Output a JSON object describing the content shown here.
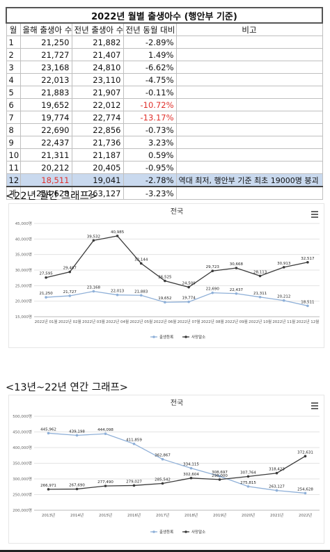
{
  "table": {
    "title": "2022년 월별 출생아수 (행안부 기준)",
    "headers": [
      "월",
      "올해 출생아 수",
      "전년 출생아 수",
      "전년 동월 대비",
      "비고"
    ],
    "rows": [
      {
        "month": "1",
        "current": "21,250",
        "previous": "21,882",
        "change": "-2.89%",
        "note": ""
      },
      {
        "month": "2",
        "current": "21,727",
        "previous": "21,407",
        "change": "1.49%",
        "note": ""
      },
      {
        "month": "3",
        "current": "23,168",
        "previous": "24,810",
        "change": "-6.62%",
        "note": ""
      },
      {
        "month": "4",
        "current": "22,013",
        "previous": "23,110",
        "change": "-4.75%",
        "note": ""
      },
      {
        "month": "5",
        "current": "21,883",
        "previous": "21,907",
        "change": "-0.11%",
        "note": ""
      },
      {
        "month": "6",
        "current": "19,652",
        "previous": "22,012",
        "change": "-10.72%",
        "note": "",
        "change_red": true
      },
      {
        "month": "7",
        "current": "19,774",
        "previous": "22,774",
        "change": "-13.17%",
        "note": "",
        "change_red": true
      },
      {
        "month": "8",
        "current": "22,690",
        "previous": "22,856",
        "change": "-0.73%",
        "note": ""
      },
      {
        "month": "9",
        "current": "22,437",
        "previous": "21,736",
        "change": "3.23%",
        "note": ""
      },
      {
        "month": "10",
        "current": "21,311",
        "previous": "21,187",
        "change": "0.59%",
        "note": ""
      },
      {
        "month": "11",
        "current": "20,212",
        "previous": "20,405",
        "change": "-0.95%",
        "note": ""
      },
      {
        "month": "12",
        "current": "18,511",
        "previous": "19,041",
        "change": "-2.78%",
        "note": "역대 최저, 행안부 기준 최초 19000명 붕괴",
        "highlight": true
      }
    ],
    "total": {
      "month": "계",
      "current": "254,628",
      "previous": "263,127",
      "change": "-3.23%",
      "note": ""
    }
  },
  "section1": {
    "label": "<22년 월간 그래프>"
  },
  "section2": {
    "label": "<13년~22년 연간 그래프>"
  },
  "colors": {
    "series1": "#8fb0d8",
    "series2": "#3a3a3a",
    "grid": "#e3e3e3",
    "negative": "#e0302b",
    "highlight": "#c9d9ee"
  },
  "chart_data": [
    {
      "type": "line",
      "title": "전국",
      "categories": [
        "2022년 01월",
        "2022년 02월",
        "2022년 03월",
        "2022년 04월",
        "2022년 05월",
        "2022년 06월",
        "2022년 07월",
        "2022년 08월",
        "2022년 09월",
        "2022년 10월",
        "2022년 11월",
        "2022년 12월"
      ],
      "series": [
        {
          "name": "출생등록",
          "values": [
            21250,
            21727,
            23168,
            22013,
            21883,
            19652,
            19774,
            22690,
            22437,
            21311,
            20212,
            18511
          ]
        },
        {
          "name": "사망말소",
          "values": [
            27595,
            29407,
            39532,
            40985,
            32144,
            26525,
            24509,
            29723,
            30668,
            28113,
            30913,
            32517
          ]
        }
      ],
      "y_ticks": [
        "15,000명",
        "20,000명",
        "25,000명",
        "30,000명",
        "35,000명",
        "40,000명",
        "45,000명"
      ],
      "ylim": [
        15000,
        45000
      ],
      "grid": true,
      "legend": "bottom"
    },
    {
      "type": "line",
      "title": "전국",
      "categories": [
        "2013년",
        "2014년",
        "2015년",
        "2016년",
        "2017년",
        "2018년",
        "2019년",
        "2020년",
        "2021년",
        "2022년"
      ],
      "series": [
        {
          "name": "출생등록",
          "values": [
            445962,
            439198,
            444098,
            411859,
            362867,
            334115,
            308697,
            275815,
            263127,
            254628
          ]
        },
        {
          "name": "사망말소",
          "values": [
            266971,
            267690,
            277490,
            279027,
            285542,
            302604,
            298000,
            307764,
            318423,
            372631
          ]
        }
      ],
      "y_ticks": [
        "200,000명",
        "250,000명",
        "300,000명",
        "350,000명",
        "400,000명",
        "450,000명",
        "500,000명"
      ],
      "ylim": [
        200000,
        500000
      ],
      "grid": true,
      "legend": "bottom"
    }
  ]
}
